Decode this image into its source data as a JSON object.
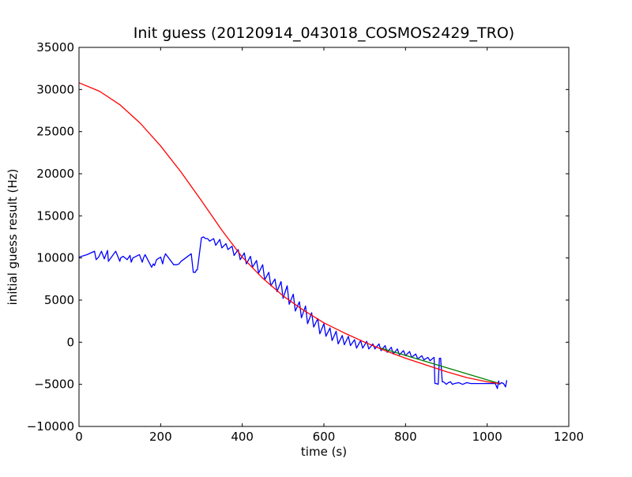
{
  "chart_data": {
    "type": "line",
    "title": "Init guess (20120914_043018_COSMOS2429_TRO)",
    "xlabel": "time (s)",
    "ylabel": "initial guess result (Hz)",
    "xlim": [
      0,
      1200
    ],
    "ylim": [
      -10000,
      35000
    ],
    "x_ticks": [
      0,
      200,
      400,
      600,
      800,
      1000,
      1200
    ],
    "y_ticks": [
      -10000,
      -5000,
      0,
      5000,
      10000,
      15000,
      20000,
      25000,
      30000,
      35000
    ],
    "grid": false,
    "series": [
      {
        "color": "#0000ff",
        "x": [
          0,
          20,
          38,
          42,
          48,
          55,
          62,
          70,
          72,
          78,
          90,
          100,
          102,
          108,
          118,
          125,
          128,
          132,
          148,
          155,
          158,
          162,
          178,
          182,
          185,
          190,
          200,
          205,
          208,
          212,
          232,
          240,
          245,
          250,
          275,
          280,
          285,
          288,
          290,
          300,
          305,
          310,
          315,
          320,
          330,
          335,
          345,
          350,
          360,
          365,
          375,
          380,
          390,
          395,
          405,
          410,
          420,
          425,
          435,
          440,
          450,
          455,
          465,
          470,
          480,
          485,
          495,
          500,
          510,
          515,
          525,
          530,
          540,
          545,
          555,
          560,
          570,
          575,
          585,
          590,
          600,
          605,
          615,
          620,
          630,
          635,
          645,
          650,
          660,
          665,
          675,
          680,
          690,
          695,
          705,
          710,
          720,
          725,
          735,
          740,
          750,
          755,
          765,
          770,
          780,
          785,
          795,
          800,
          810,
          815,
          825,
          830,
          840,
          845,
          855,
          860,
          870,
          872,
          875,
          880,
          883,
          886,
          890,
          893,
          900,
          905,
          910,
          915,
          920,
          930,
          940,
          950,
          960,
          970,
          980,
          990,
          1000,
          1010,
          1020,
          1025,
          1028,
          1030,
          1035,
          1040,
          1045,
          1048
        ],
        "y": [
          10100,
          10400,
          10800,
          9800,
          10100,
          10800,
          9900,
          10900,
          9600,
          10000,
          10800,
          9600,
          10000,
          10200,
          9800,
          10300,
          9500,
          10000,
          10400,
          9500,
          10000,
          10400,
          8900,
          9300,
          9100,
          9800,
          10100,
          9300,
          10000,
          10500,
          9200,
          9200,
          9300,
          9600,
          10500,
          8300,
          8300,
          8600,
          8600,
          12400,
          12500,
          12300,
          12300,
          12000,
          12300,
          11500,
          12200,
          11200,
          11700,
          11000,
          11400,
          10300,
          11000,
          9800,
          10600,
          9300,
          10200,
          8900,
          9700,
          8200,
          9200,
          7400,
          8300,
          6700,
          7500,
          6000,
          7200,
          5200,
          6700,
          4500,
          5700,
          3700,
          4800,
          2900,
          4300,
          2200,
          3500,
          1800,
          2800,
          1000,
          2200,
          700,
          1700,
          200,
          1300,
          -200,
          800,
          -300,
          700,
          -400,
          300,
          -700,
          200,
          -700,
          100,
          -800,
          -200,
          -800,
          -200,
          -1000,
          -400,
          -1200,
          -600,
          -1400,
          -800,
          -1500,
          -1000,
          -1600,
          -1100,
          -1800,
          -1400,
          -2000,
          -1600,
          -2100,
          -1800,
          -2200,
          -1800,
          -4900,
          -4900,
          -5000,
          -1900,
          -1900,
          -4700,
          -4700,
          -5000,
          -4800,
          -4700,
          -5000,
          -4900,
          -4800,
          -5000,
          -4800,
          -4900,
          -4900,
          -4900,
          -4900,
          -4900,
          -4900,
          -4900,
          -5500,
          -4600,
          -5000,
          -4800,
          -4900,
          -5300,
          -4500
        ]
      },
      {
        "color": "#008000",
        "x": [
          740,
          1030
        ],
        "y": [
          -700,
          -4900
        ]
      },
      {
        "color": "#ff0000",
        "x": [
          0,
          50,
          100,
          150,
          200,
          250,
          300,
          350,
          400,
          450,
          500,
          550,
          600,
          650,
          700,
          750,
          800,
          850,
          900,
          950,
          1000,
          1030
        ],
        "y": [
          30800,
          29800,
          28200,
          26000,
          23300,
          20200,
          16800,
          13300,
          10100,
          7600,
          5500,
          3800,
          2300,
          1100,
          0,
          -1000,
          -1900,
          -2700,
          -3500,
          -4200,
          -4700,
          -4900
        ]
      }
    ]
  }
}
